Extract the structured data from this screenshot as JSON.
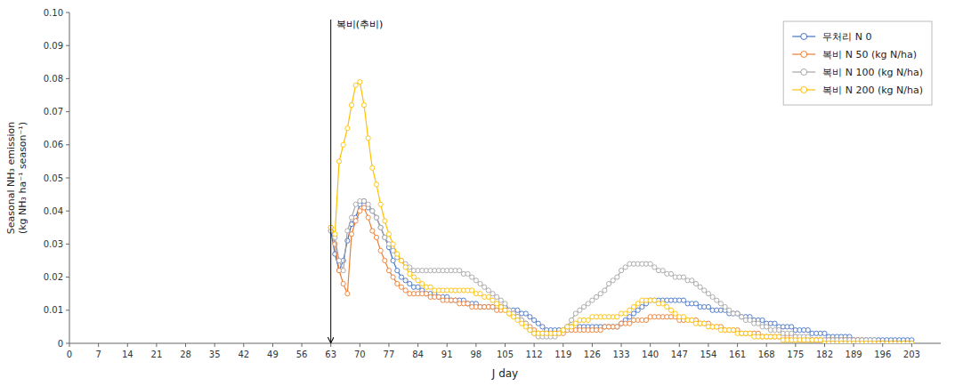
{
  "chart_data": {
    "type": "line",
    "title": "",
    "xlabel": "J day",
    "ylabel": "Seasonal NH₃ emission\n(kg NH₃ ha⁻¹ season⁻¹)",
    "annotations": [
      {
        "text": "복비(추비)",
        "x": 63
      }
    ],
    "xlim": [
      0,
      210
    ],
    "ylim": [
      0,
      0.1
    ],
    "xticks": [
      0,
      7,
      14,
      21,
      28,
      35,
      42,
      49,
      56,
      63,
      70,
      77,
      84,
      91,
      98,
      105,
      112,
      119,
      126,
      133,
      140,
      147,
      154,
      161,
      168,
      175,
      182,
      189,
      196,
      203
    ],
    "yticks": [
      0,
      0.01,
      0.02,
      0.03,
      0.04,
      0.05,
      0.06,
      0.07,
      0.08,
      0.09,
      {
        "value": 0.1,
        "label": "0.10"
      }
    ],
    "grid": false,
    "legend": "upper right",
    "x": [
      63,
      64,
      65,
      66,
      67,
      68,
      69,
      70,
      71,
      72,
      73,
      74,
      75,
      76,
      77,
      78,
      79,
      80,
      81,
      82,
      83,
      84,
      85,
      86,
      87,
      88,
      89,
      90,
      91,
      92,
      93,
      94,
      95,
      96,
      97,
      98,
      99,
      100,
      101,
      102,
      103,
      104,
      105,
      106,
      107,
      108,
      109,
      110,
      111,
      112,
      113,
      114,
      115,
      116,
      117,
      118,
      119,
      120,
      121,
      122,
      123,
      124,
      125,
      126,
      127,
      128,
      129,
      130,
      131,
      132,
      133,
      134,
      135,
      136,
      137,
      138,
      139,
      140,
      141,
      142,
      143,
      144,
      145,
      146,
      147,
      148,
      149,
      150,
      151,
      152,
      153,
      154,
      155,
      156,
      157,
      158,
      159,
      160,
      161,
      162,
      163,
      164,
      165,
      166,
      167,
      168,
      169,
      170,
      171,
      172,
      173,
      174,
      175,
      176,
      177,
      178,
      179,
      180,
      181,
      182,
      183,
      184,
      185,
      186,
      187,
      188,
      189,
      190,
      191,
      192,
      193,
      194,
      195,
      196,
      197,
      198,
      199,
      200,
      201,
      202,
      203
    ],
    "series": [
      {
        "name": "무처리 N 0",
        "color": "#4472C4",
        "marker": "circle",
        "line_style": "solid",
        "values": [
          0.034,
          0.027,
          0.022,
          0.025,
          0.031,
          0.036,
          0.038,
          0.042,
          0.043,
          0.041,
          0.04,
          0.038,
          0.035,
          0.032,
          0.029,
          0.025,
          0.022,
          0.02,
          0.019,
          0.018,
          0.017,
          0.017,
          0.016,
          0.015,
          0.015,
          0.015,
          0.014,
          0.014,
          0.014,
          0.013,
          0.013,
          0.013,
          0.013,
          0.012,
          0.012,
          0.012,
          0.011,
          0.011,
          0.011,
          0.011,
          0.011,
          0.011,
          0.011,
          0.01,
          0.01,
          0.01,
          0.009,
          0.009,
          0.008,
          0.007,
          0.006,
          0.005,
          0.004,
          0.004,
          0.004,
          0.004,
          0.004,
          0.005,
          0.005,
          0.005,
          0.005,
          0.005,
          0.005,
          0.005,
          0.005,
          0.005,
          0.005,
          0.005,
          0.005,
          0.005,
          0.006,
          0.007,
          0.008,
          0.009,
          0.01,
          0.011,
          0.012,
          0.013,
          0.013,
          0.013,
          0.013,
          0.013,
          0.013,
          0.013,
          0.013,
          0.013,
          0.012,
          0.012,
          0.012,
          0.011,
          0.011,
          0.011,
          0.01,
          0.01,
          0.01,
          0.01,
          0.009,
          0.009,
          0.009,
          0.008,
          0.008,
          0.008,
          0.007,
          0.007,
          0.007,
          0.006,
          0.006,
          0.006,
          0.005,
          0.005,
          0.005,
          0.005,
          0.004,
          0.004,
          0.004,
          0.004,
          0.003,
          0.003,
          0.003,
          0.003,
          0.002,
          0.002,
          0.002,
          0.002,
          0.002,
          0.002,
          0.001,
          0.001,
          0.001,
          0.001,
          0.001,
          0.001,
          0.001,
          0.001,
          0.001,
          0.001,
          0.001,
          0.001,
          0.001,
          0.001,
          0.001
        ]
      },
      {
        "name": "복비 N 50 (kg N/ha)",
        "color": "#ED7D31",
        "marker": "circle",
        "line_style": "solid",
        "values": [
          0.035,
          0.03,
          0.022,
          0.018,
          0.015,
          0.033,
          0.037,
          0.04,
          0.041,
          0.038,
          0.034,
          0.032,
          0.028,
          0.025,
          0.022,
          0.02,
          0.018,
          0.017,
          0.016,
          0.015,
          0.015,
          0.015,
          0.015,
          0.015,
          0.014,
          0.014,
          0.014,
          0.013,
          0.013,
          0.013,
          0.013,
          0.012,
          0.012,
          0.012,
          0.011,
          0.011,
          0.011,
          0.011,
          0.011,
          0.011,
          0.01,
          0.01,
          0.01,
          0.009,
          0.009,
          0.008,
          0.007,
          0.006,
          0.005,
          0.004,
          0.003,
          0.003,
          0.003,
          0.003,
          0.003,
          0.003,
          0.003,
          0.004,
          0.004,
          0.004,
          0.004,
          0.004,
          0.004,
          0.004,
          0.004,
          0.004,
          0.005,
          0.005,
          0.005,
          0.005,
          0.006,
          0.006,
          0.006,
          0.007,
          0.007,
          0.007,
          0.007,
          0.008,
          0.008,
          0.008,
          0.008,
          0.008,
          0.008,
          0.008,
          0.007,
          0.007,
          0.007,
          0.007,
          0.007,
          0.006,
          0.006,
          0.006,
          0.005,
          0.005,
          0.005,
          0.004,
          0.004,
          0.004,
          0.004,
          0.003,
          0.003,
          0.003,
          0.003,
          0.003,
          0.002,
          0.002,
          0.002,
          0.002,
          0.002,
          0.002,
          0.002,
          0.002,
          0.002,
          0.001,
          0.001,
          0.001,
          0.001,
          0.001,
          0.001,
          0.001,
          0.001,
          0.001,
          0.001,
          0.001,
          0.001,
          0.001,
          0.001,
          0.001,
          0.001,
          0.0,
          0.0,
          0.0,
          0.0,
          0.0,
          0.0,
          0.0,
          0.0,
          0.0,
          0.0,
          0.0,
          0.0
        ]
      },
      {
        "name": "복비 N 100 (kg N/ha)",
        "color": "#A5A5A5",
        "marker": "circle",
        "line_style": "solid",
        "values": [
          0.034,
          0.032,
          0.025,
          0.022,
          0.034,
          0.038,
          0.042,
          0.043,
          0.043,
          0.042,
          0.04,
          0.038,
          0.035,
          0.032,
          0.03,
          0.028,
          0.026,
          0.025,
          0.024,
          0.023,
          0.022,
          0.022,
          0.022,
          0.022,
          0.022,
          0.022,
          0.022,
          0.022,
          0.022,
          0.022,
          0.022,
          0.022,
          0.021,
          0.021,
          0.02,
          0.019,
          0.018,
          0.017,
          0.016,
          0.015,
          0.014,
          0.013,
          0.012,
          0.01,
          0.009,
          0.008,
          0.007,
          0.006,
          0.004,
          0.003,
          0.002,
          0.002,
          0.002,
          0.002,
          0.002,
          0.003,
          0.004,
          0.005,
          0.007,
          0.009,
          0.01,
          0.011,
          0.012,
          0.013,
          0.014,
          0.015,
          0.016,
          0.018,
          0.019,
          0.02,
          0.022,
          0.023,
          0.024,
          0.024,
          0.024,
          0.024,
          0.024,
          0.024,
          0.023,
          0.022,
          0.022,
          0.021,
          0.021,
          0.02,
          0.02,
          0.02,
          0.019,
          0.019,
          0.018,
          0.017,
          0.016,
          0.015,
          0.014,
          0.013,
          0.012,
          0.011,
          0.01,
          0.009,
          0.009,
          0.008,
          0.007,
          0.007,
          0.006,
          0.006,
          0.005,
          0.005,
          0.004,
          0.004,
          0.004,
          0.003,
          0.003,
          0.003,
          0.002,
          0.002,
          0.002,
          0.002,
          0.001,
          0.001,
          0.001,
          0.001,
          0.001,
          0.001,
          0.001,
          0.001,
          0.001,
          0.001,
          0.001,
          0.001,
          0.001,
          0.001,
          0.001,
          0.001,
          0.0,
          0.0,
          0.0,
          0.0,
          0.0,
          0.0,
          0.0,
          0.0,
          0.0
        ]
      },
      {
        "name": "복비 N 200 (kg N/ha)",
        "color": "#FFC000",
        "marker": "circle",
        "line_style": "solid",
        "values": [
          0.035,
          0.033,
          0.055,
          0.06,
          0.065,
          0.072,
          0.078,
          0.079,
          0.072,
          0.062,
          0.053,
          0.048,
          0.042,
          0.037,
          0.033,
          0.03,
          0.027,
          0.025,
          0.023,
          0.021,
          0.02,
          0.019,
          0.018,
          0.017,
          0.017,
          0.016,
          0.016,
          0.016,
          0.016,
          0.016,
          0.016,
          0.016,
          0.016,
          0.016,
          0.016,
          0.015,
          0.015,
          0.014,
          0.014,
          0.013,
          0.012,
          0.011,
          0.01,
          0.009,
          0.008,
          0.007,
          0.006,
          0.005,
          0.004,
          0.003,
          0.003,
          0.003,
          0.003,
          0.003,
          0.003,
          0.003,
          0.004,
          0.005,
          0.005,
          0.006,
          0.007,
          0.007,
          0.007,
          0.008,
          0.008,
          0.008,
          0.008,
          0.008,
          0.008,
          0.008,
          0.009,
          0.009,
          0.01,
          0.011,
          0.012,
          0.013,
          0.013,
          0.013,
          0.013,
          0.012,
          0.012,
          0.011,
          0.01,
          0.009,
          0.008,
          0.008,
          0.007,
          0.007,
          0.006,
          0.006,
          0.006,
          0.005,
          0.005,
          0.005,
          0.004,
          0.004,
          0.004,
          0.004,
          0.003,
          0.003,
          0.003,
          0.003,
          0.002,
          0.002,
          0.002,
          0.002,
          0.002,
          0.002,
          0.002,
          0.001,
          0.001,
          0.001,
          0.001,
          0.001,
          0.001,
          0.001,
          0.001,
          0.001,
          0.001,
          0.0,
          0.0,
          0.0,
          0.0,
          0.0,
          0.0,
          0.0,
          0.0,
          0.0,
          0.0,
          0.0,
          0.0,
          0.0,
          0.0,
          0.0,
          0.0,
          0.0,
          0.0,
          0.0,
          0.0,
          0.0,
          0.0
        ]
      }
    ]
  }
}
